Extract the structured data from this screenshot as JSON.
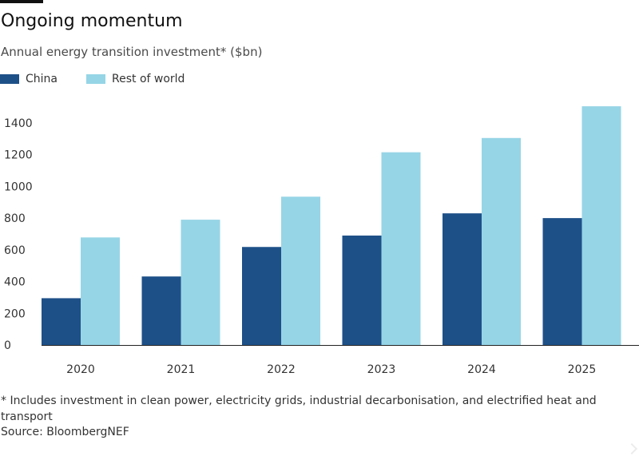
{
  "title": "Ongoing momentum",
  "subtitle": "Annual energy transition investment* ($bn)",
  "legend": [
    {
      "label": "China",
      "color": "#1e5088"
    },
    {
      "label": "Rest of world",
      "color": "#96d5e6"
    }
  ],
  "chart_data": {
    "type": "bar",
    "categories": [
      "2020",
      "2021",
      "2022",
      "2023",
      "2024",
      "2025"
    ],
    "series": [
      {
        "name": "China",
        "color": "#1e5088",
        "values": [
          295,
          432,
          618,
          690,
          830,
          800
        ]
      },
      {
        "name": "Rest of world",
        "color": "#96d5e6",
        "values": [
          678,
          790,
          935,
          1215,
          1305,
          1505
        ]
      }
    ],
    "ylim": [
      0,
      1450
    ],
    "yticks": [
      0,
      200,
      400,
      600,
      800,
      1000,
      1200,
      1400
    ],
    "xlabel": "",
    "ylabel": "",
    "grid": false,
    "legend_position": "top-left"
  },
  "footnote": "* Includes investment in clean power, electricity grids, industrial decarbonisation, and electrified heat and transport",
  "source": "Source: BloombergNEF"
}
